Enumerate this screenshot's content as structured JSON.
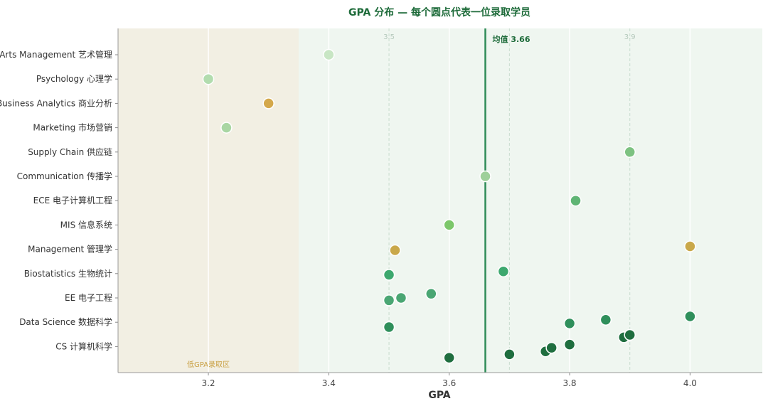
{
  "chart_data": {
    "type": "scatter",
    "title": "GPA 分布 — 每个圆点代表一位录取学员",
    "xlabel": "GPA",
    "ylabel": "",
    "xlim": [
      3.05,
      4.12
    ],
    "xticks": [
      3.2,
      3.4,
      3.6,
      3.8,
      4.0
    ],
    "xtick_labels": [
      "3.2",
      "3.4",
      "3.6",
      "3.8",
      "4.0"
    ],
    "reference_lines": [
      {
        "value": 3.5,
        "label": "3.5"
      },
      {
        "value": 3.7,
        "label": ""
      },
      {
        "value": 3.9,
        "label": "3.9"
      }
    ],
    "mean": {
      "value": 3.66,
      "label": "均值 3.66"
    },
    "low_zone": {
      "from": 3.05,
      "to": 3.35,
      "label": "低GPA录取区"
    },
    "categories": [
      "Arts Management 艺术管理",
      "Psychology 心理学",
      "Business Analytics 商业分析",
      "Marketing 市场营销",
      "Supply Chain 供应链",
      "Communication 传播学",
      "ECE 电子计算机工程",
      "MIS 信息系统",
      "Management 管理学",
      "Biostatistics 生物统计",
      "EE 电子工程",
      "Data Science 数据科学",
      "CS 计算机科学"
    ],
    "points": [
      {
        "category": "Arts Management 艺术管理",
        "x": 3.4,
        "jitter": 0.0,
        "color": "#c8e6c4"
      },
      {
        "category": "Psychology 心理学",
        "x": 3.2,
        "jitter": 0.0,
        "color": "#b2dcae"
      },
      {
        "category": "Business Analytics 商业分析",
        "x": 3.3,
        "jitter": 0.0,
        "color": "#d4a84b"
      },
      {
        "category": "Marketing 市场营销",
        "x": 3.23,
        "jitter": 0.0,
        "color": "#a9d6a3"
      },
      {
        "category": "Supply Chain 供应链",
        "x": 3.9,
        "jitter": 0.0,
        "color": "#7dc281"
      },
      {
        "category": "Communication 传播学",
        "x": 3.66,
        "jitter": 0.0,
        "color": "#9fd09a"
      },
      {
        "category": "ECE 电子计算机工程",
        "x": 3.81,
        "jitter": 0.0,
        "color": "#5fb574"
      },
      {
        "category": "MIS 信息系统",
        "x": 3.6,
        "jitter": 0.0,
        "color": "#7cc76a"
      },
      {
        "category": "Management 管理学",
        "x": 3.51,
        "jitter": 0.04,
        "color": "#c9a84a"
      },
      {
        "category": "Management 管理学",
        "x": 4.0,
        "jitter": -0.12,
        "color": "#c9a84a"
      },
      {
        "category": "Biostatistics 生物统计",
        "x": 3.5,
        "jitter": 0.05,
        "color": "#3da86e"
      },
      {
        "category": "Biostatistics 生物统计",
        "x": 3.69,
        "jitter": -0.09,
        "color": "#3da86e"
      },
      {
        "category": "EE 电子工程",
        "x": 3.5,
        "jitter": 0.1,
        "color": "#4aa673"
      },
      {
        "category": "EE 电子工程",
        "x": 3.52,
        "jitter": 0.0,
        "color": "#4aa673"
      },
      {
        "category": "EE 电子工程",
        "x": 3.57,
        "jitter": -0.17,
        "color": "#4aa673"
      },
      {
        "category": "Data Science 数据科学",
        "x": 3.5,
        "jitter": 0.2,
        "color": "#2f8f5b"
      },
      {
        "category": "Data Science 数据科学",
        "x": 3.8,
        "jitter": 0.05,
        "color": "#2f8f5b"
      },
      {
        "category": "Data Science 数据科学",
        "x": 3.86,
        "jitter": -0.1,
        "color": "#2f8f5b"
      },
      {
        "category": "Data Science 数据科学",
        "x": 4.0,
        "jitter": -0.24,
        "color": "#2f8f5b"
      },
      {
        "category": "CS 计算机科学",
        "x": 3.6,
        "jitter": 0.46,
        "color": "#1f6e3f"
      },
      {
        "category": "CS 计算机科学",
        "x": 3.7,
        "jitter": 0.32,
        "color": "#1f6e3f"
      },
      {
        "category": "CS 计算机科学",
        "x": 3.76,
        "jitter": 0.2,
        "color": "#1f6e3f"
      },
      {
        "category": "CS 计算机科学",
        "x": 3.77,
        "jitter": 0.05,
        "color": "#1f6e3f"
      },
      {
        "category": "CS 计算机科学",
        "x": 3.8,
        "jitter": -0.08,
        "color": "#1f6e3f"
      },
      {
        "category": "CS 计算机科学",
        "x": 3.89,
        "jitter": -0.38,
        "color": "#1f6e3f"
      },
      {
        "category": "CS 计算机科学",
        "x": 3.9,
        "jitter": -0.48,
        "color": "#1f6e3f"
      }
    ],
    "colors": {
      "title": "#1e6b3a",
      "mean_line": "#2e8b57",
      "low_zone_bg": "#f2efe3",
      "main_bg": "#eff6f0",
      "zone_label": "#c9a043",
      "grid": "#ffffff",
      "ref_line": "#c9dccf"
    },
    "grid": true,
    "legend": "none"
  }
}
